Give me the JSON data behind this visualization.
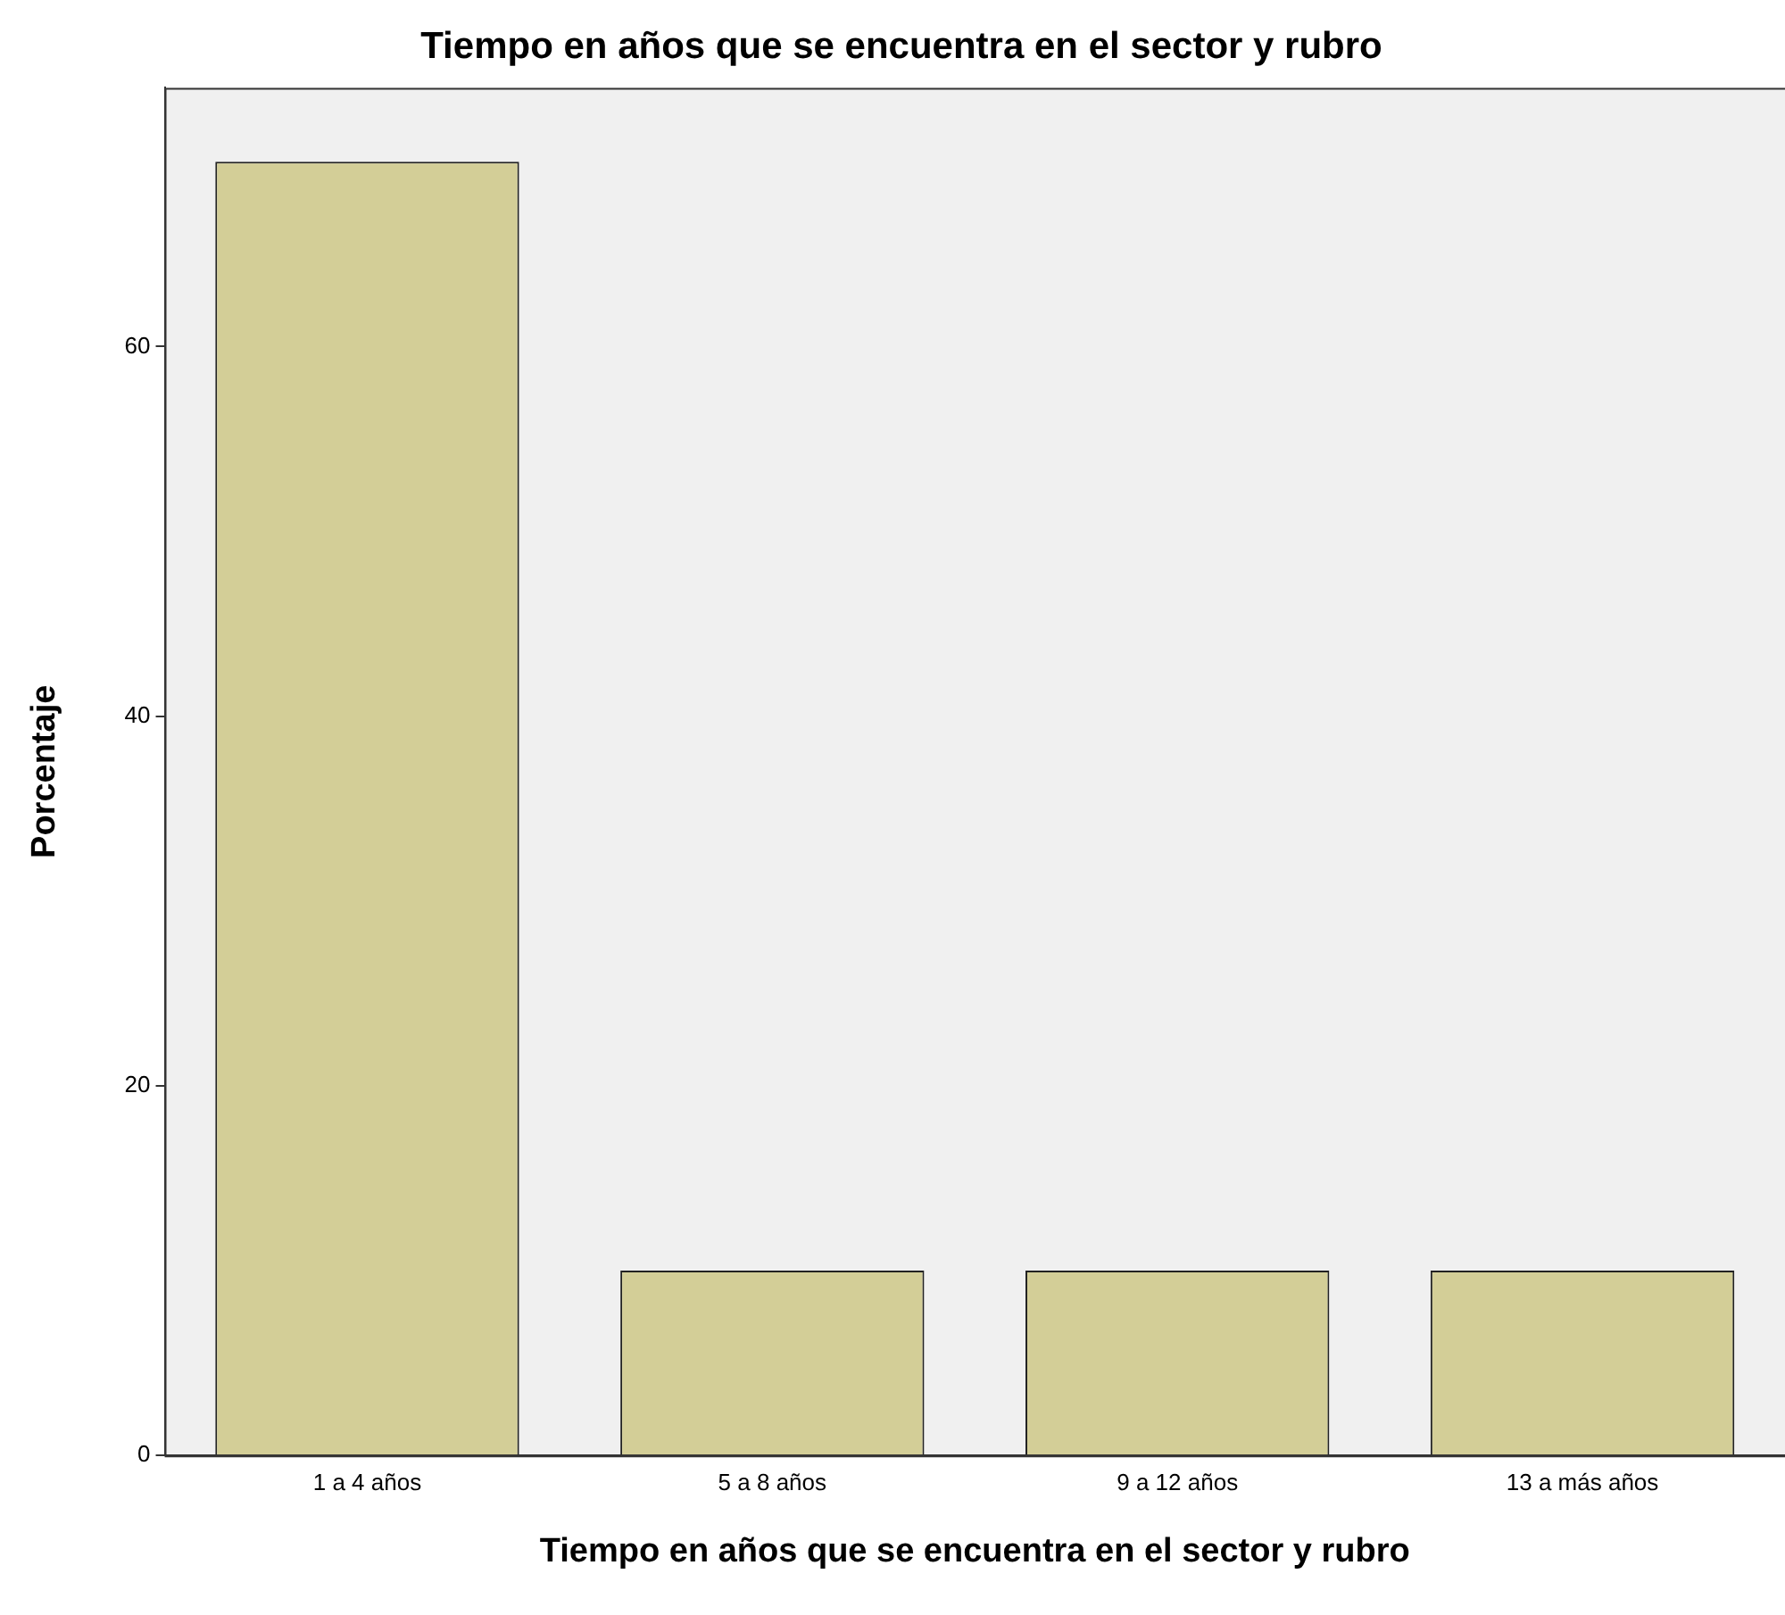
{
  "chart_data": {
    "type": "bar",
    "title": "Tiempo en años que se encuentra en el sector y rubro",
    "xlabel": "Tiempo en años que se encuentra en el sector y rubro",
    "ylabel": "Porcentaje",
    "categories": [
      "1 a 4 años",
      "5 a 8 años",
      "9 a 12 años",
      "13 a más años"
    ],
    "values": [
      70,
      10,
      10,
      10
    ],
    "color": "#d3ce97",
    "ylim": [
      0,
      74
    ],
    "yticks": [
      0,
      20,
      40,
      60
    ],
    "grid": false,
    "legend": false
  }
}
